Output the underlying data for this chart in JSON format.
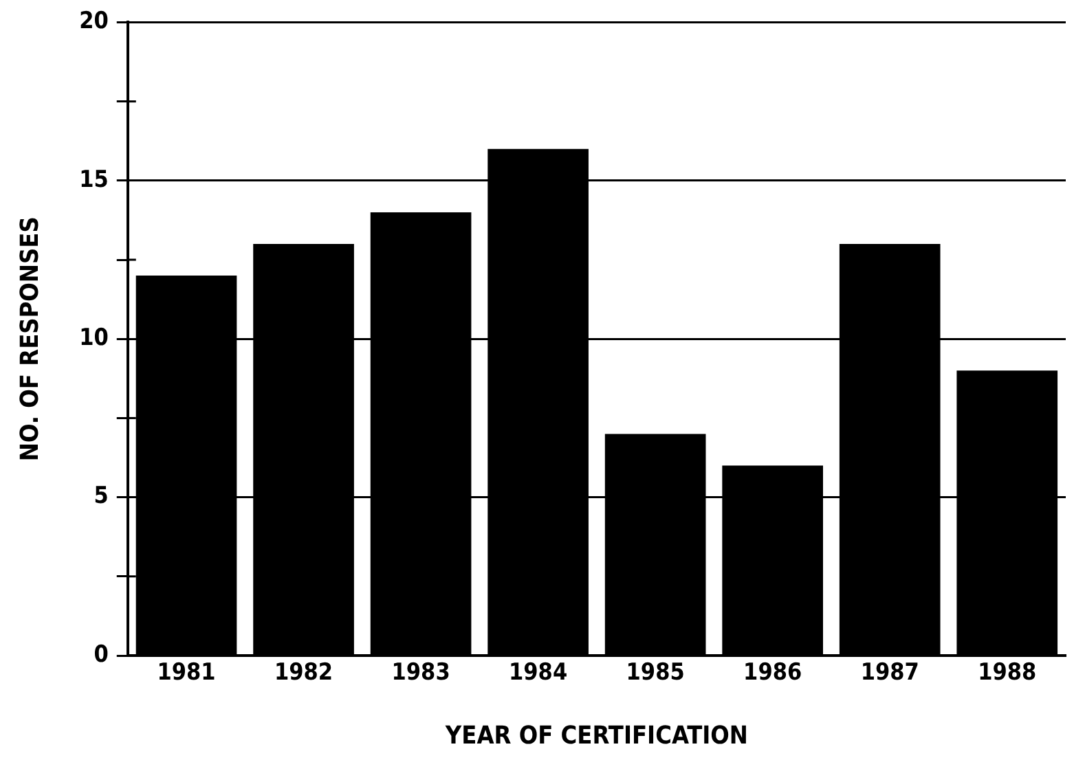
{
  "chart_data": {
    "type": "bar",
    "xlabel": "YEAR OF CERTIFICATION",
    "ylabel": "NO. OF RESPONSES",
    "categories": [
      "1981",
      "1982",
      "1983",
      "1984",
      "1985",
      "1986",
      "1987",
      "1988"
    ],
    "values": [
      12,
      13,
      14,
      16,
      7,
      6,
      13,
      9
    ],
    "color": "#000000",
    "ylim": [
      0,
      20
    ],
    "yticks": [
      0,
      {
        "value": 2.5,
        "label": null
      },
      5,
      {
        "value": 7.5,
        "label": null
      },
      10,
      {
        "value": 12.5,
        "label": null
      },
      15,
      {
        "value": 17.5,
        "label": null
      },
      20
    ],
    "grid": "y"
  }
}
